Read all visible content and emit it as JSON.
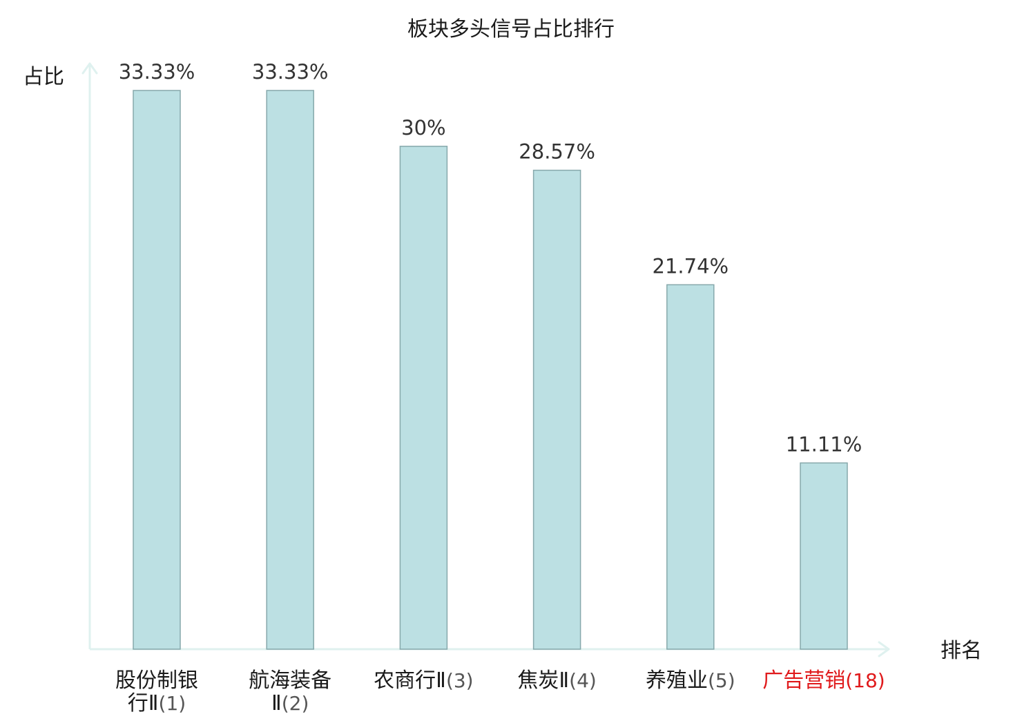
{
  "chart_data": {
    "type": "bar",
    "title": "板块多头信号占比排行",
    "ylabel": "占比",
    "xlabel": "排名",
    "ylim": [
      0,
      35
    ],
    "grid": false,
    "categories": [
      {
        "name_lines": [
          "股份制银",
          "行Ⅱ"
        ],
        "rank_label": "(1)",
        "highlight": false
      },
      {
        "name_lines": [
          "航海装备",
          "Ⅱ"
        ],
        "rank_label": "(2)",
        "highlight": false
      },
      {
        "name_lines": [
          "农商行Ⅱ"
        ],
        "rank_label": "(3)",
        "highlight": false
      },
      {
        "name_lines": [
          "焦炭Ⅱ"
        ],
        "rank_label": "(4)",
        "highlight": false
      },
      {
        "name_lines": [
          "养殖业"
        ],
        "rank_label": "(5)",
        "highlight": false
      },
      {
        "name_lines": [
          "广告营销"
        ],
        "rank_label": "(18)",
        "highlight": true
      }
    ],
    "values": [
      33.33,
      33.33,
      30,
      28.57,
      21.74,
      11.11
    ],
    "value_labels": [
      "33.33%",
      "33.33%",
      "30%",
      "28.57%",
      "21.74%",
      "11.11%"
    ],
    "colors": {
      "bar_fill": "#bce0e3",
      "bar_stroke": "#86a8ab",
      "axis": "#dff1ef",
      "label_text": "#1a1a1a",
      "suffix_text": "#555555",
      "highlight_text": "#e0191b"
    }
  }
}
